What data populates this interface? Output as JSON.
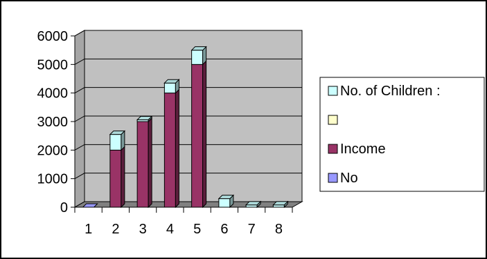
{
  "chart_data": {
    "type": "bar",
    "stacked": true,
    "three_d": true,
    "categories": [
      "1",
      "2",
      "3",
      "4",
      "5",
      "6",
      "7",
      "8"
    ],
    "series": [
      {
        "name": "No",
        "color": "#9999ff",
        "values": [
          0,
          0,
          0,
          0,
          0,
          0,
          0,
          0
        ]
      },
      {
        "name": "Income",
        "color": "#993366",
        "values": [
          0,
          2000,
          3000,
          4000,
          5000,
          0,
          0,
          0
        ]
      },
      {
        "name": "",
        "color": "#ffffcc",
        "values": [
          0,
          0,
          0,
          0,
          0,
          0,
          0,
          0
        ]
      },
      {
        "name": "No. of  Children :",
        "color": "#ccffff",
        "values": [
          0,
          550,
          60,
          350,
          500,
          300,
          80,
          80
        ]
      }
    ],
    "ylim": [
      0,
      6000
    ],
    "yticks": [
      "0",
      "1000",
      "2000",
      "3000",
      "4000",
      "5000",
      "6000"
    ],
    "grid": true,
    "legend_position": "right",
    "plot_background": "#c0c0c0"
  }
}
